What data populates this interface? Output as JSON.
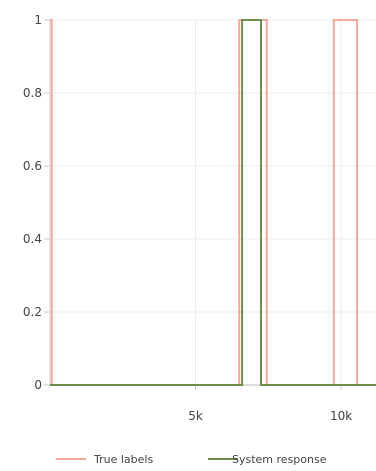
{
  "chart_data": {
    "type": "line",
    "title": "",
    "xlabel": "",
    "ylabel": "",
    "xlim": [
      0,
      11200
    ],
    "ylim": [
      0,
      1
    ],
    "grid": true,
    "legend_position": "bottom",
    "x_ticks": [
      {
        "value": 5000,
        "label": "5k"
      },
      {
        "value": 10000,
        "label": "10k"
      }
    ],
    "y_ticks": [
      {
        "value": 0,
        "label": "0"
      },
      {
        "value": 0.2,
        "label": "0.2"
      },
      {
        "value": 0.4,
        "label": "0.4"
      },
      {
        "value": 0.6,
        "label": "0.6"
      },
      {
        "value": 0.8,
        "label": "0.8"
      },
      {
        "value": 1,
        "label": "1"
      }
    ],
    "series": [
      {
        "name": "True labels",
        "color": "#f4a99a",
        "step": true,
        "points": [
          [
            0,
            1
          ],
          [
            60,
            1
          ],
          [
            60,
            0
          ],
          [
            6500,
            0
          ],
          [
            6500,
            1
          ],
          [
            7450,
            1
          ],
          [
            7450,
            0
          ],
          [
            9750,
            0
          ],
          [
            9750,
            1
          ],
          [
            10550,
            1
          ],
          [
            10550,
            0
          ],
          [
            11200,
            0
          ]
        ]
      },
      {
        "name": "System response",
        "color": "#6d8f4a",
        "step": true,
        "points": [
          [
            0,
            0
          ],
          [
            6600,
            0
          ],
          [
            6600,
            1
          ],
          [
            7250,
            1
          ],
          [
            7250,
            0
          ],
          [
            11200,
            0
          ]
        ]
      }
    ]
  }
}
